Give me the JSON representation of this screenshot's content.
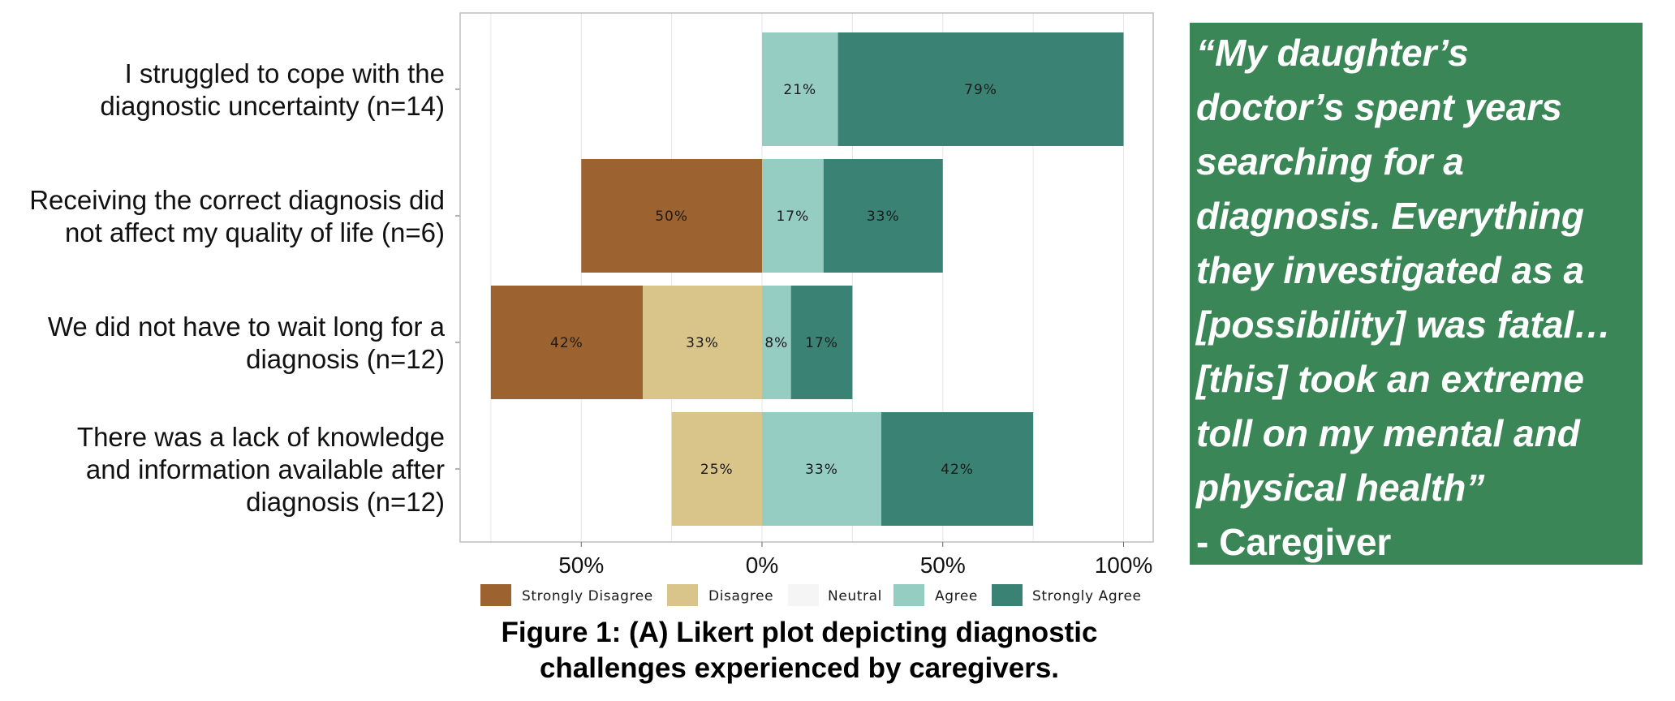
{
  "chart_data": {
    "type": "bar",
    "orientation": "horizontal-diverging",
    "categories": [
      {
        "lines": [
          "I struggled to cope with the",
          "diagnostic uncertainty (n=14)"
        ]
      },
      {
        "lines": [
          "Receiving the correct diagnosis did",
          "not affect my quality of life (n=6)"
        ]
      },
      {
        "lines": [
          "We did not have to wait long for a",
          "diagnosis (n=12)"
        ]
      },
      {
        "lines": [
          "There was a lack of knowledge",
          "and information available after",
          "diagnosis (n=12)"
        ]
      }
    ],
    "series": [
      {
        "name": "Strongly Disagree",
        "color": "#9c6230",
        "values": [
          0,
          50,
          42,
          0
        ],
        "labels": [
          "",
          "50%",
          "42%",
          ""
        ]
      },
      {
        "name": "Disagree",
        "color": "#d9c589",
        "values": [
          0,
          0,
          33,
          25
        ],
        "labels": [
          "",
          "",
          "33%",
          "25%"
        ]
      },
      {
        "name": "Neutral",
        "color": "#f5f5f5",
        "values": [
          0,
          0,
          0,
          0
        ],
        "labels": [
          "",
          "",
          "",
          ""
        ]
      },
      {
        "name": "Agree",
        "color": "#96cdc3",
        "values": [
          21,
          17,
          8,
          33
        ],
        "labels": [
          "21%",
          "17%",
          "8%",
          "33%"
        ]
      },
      {
        "name": "Strongly Agree",
        "color": "#3a8374",
        "values": [
          79,
          33,
          17,
          42
        ],
        "labels": [
          "79%",
          "33%",
          "17%",
          "42%"
        ]
      }
    ],
    "xlim": [
      -85,
      108
    ],
    "xticks": [
      {
        "value": -50,
        "label": "50%"
      },
      {
        "value": 0,
        "label": "0%"
      },
      {
        "value": 50,
        "label": "50%"
      },
      {
        "value": 100,
        "label": "100%"
      }
    ],
    "grid": true,
    "legend_position": "bottom"
  },
  "caption": {
    "line1": "Figure 1: (A) Likert plot depicting diagnostic",
    "line2": "challenges experienced by caregivers."
  },
  "quote": {
    "lines": [
      "“My daughter’s",
      "doctor’s spent years",
      "searching for a",
      "diagnosis. Everything",
      "they investigated as a",
      "[possibility] was fatal…",
      "[this] took an extreme",
      "toll on my mental and",
      "physical health”"
    ],
    "author": "- Caregiver"
  },
  "colors": {
    "quote_background": "#3a8656",
    "panel_border": "#bdbdbd",
    "grid": "#e6e6e6"
  }
}
